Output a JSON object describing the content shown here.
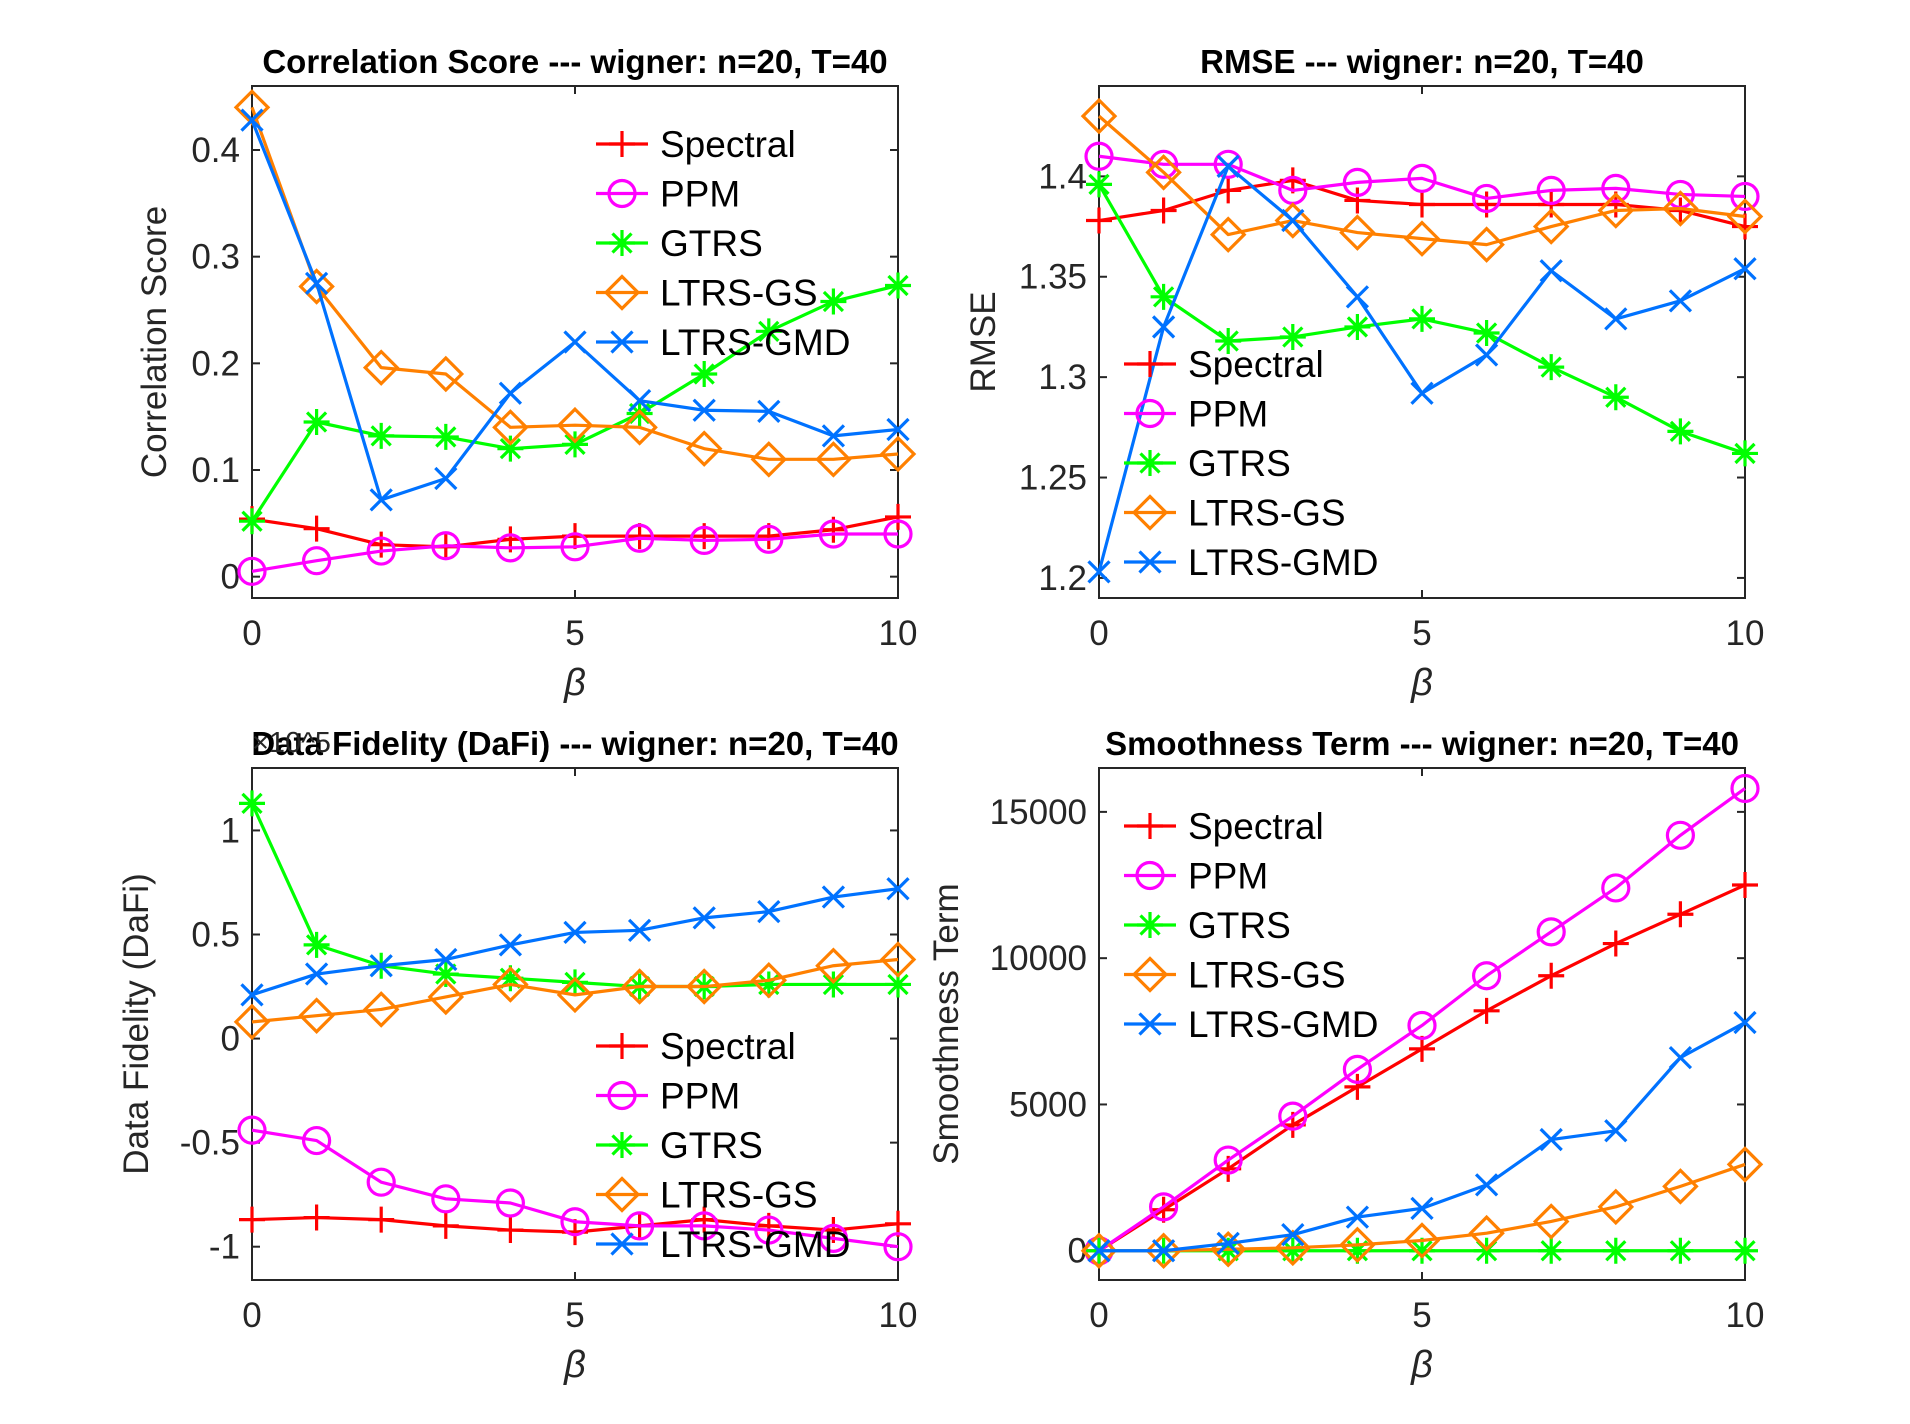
{
  "chart_data": [
    {
      "type": "line",
      "title": "Correlation Score --- wigner: n=20, T=40",
      "xlabel": "β",
      "ylabel": "Correlation Score",
      "xlim": [
        0,
        10
      ],
      "ylim": [
        -0.02,
        0.46
      ],
      "xticks": [
        0,
        5,
        10
      ],
      "yticks": [
        0,
        0.1,
        0.2,
        0.3,
        0.4
      ],
      "ytick_labels": [
        "0",
        "0.1",
        "0.2",
        "0.3",
        "0.4"
      ],
      "legend_position": "top-right",
      "x": [
        0,
        1,
        2,
        3,
        4,
        5,
        6,
        7,
        8,
        9,
        10
      ],
      "series": [
        {
          "name": "Spectral",
          "color": "#ff0000",
          "marker": "plus",
          "values": [
            0.054,
            0.045,
            0.03,
            0.028,
            0.035,
            0.038,
            0.038,
            0.038,
            0.038,
            0.044,
            0.056
          ]
        },
        {
          "name": "PPM",
          "color": "#ff00ff",
          "marker": "circle",
          "values": [
            0.005,
            0.015,
            0.024,
            0.029,
            0.027,
            0.028,
            0.036,
            0.034,
            0.035,
            0.04,
            0.04
          ]
        },
        {
          "name": "GTRS",
          "color": "#00ff00",
          "marker": "star",
          "values": [
            0.052,
            0.145,
            0.132,
            0.131,
            0.12,
            0.124,
            0.153,
            0.19,
            0.23,
            0.258,
            0.273
          ]
        },
        {
          "name": "LTRS-GS",
          "color": "#ff8000",
          "marker": "diamond",
          "values": [
            0.44,
            0.272,
            0.196,
            0.19,
            0.14,
            0.142,
            0.14,
            0.12,
            0.11,
            0.11,
            0.115
          ]
        },
        {
          "name": "LTRS-GMD",
          "color": "#0072ff",
          "marker": "x",
          "values": [
            0.428,
            0.275,
            0.072,
            0.092,
            0.172,
            0.22,
            0.165,
            0.156,
            0.155,
            0.132,
            0.138
          ]
        }
      ]
    },
    {
      "type": "line",
      "title": "RMSE --- wigner: n=20, T=40",
      "xlabel": "β",
      "ylabel": "RMSE",
      "xlim": [
        0,
        10
      ],
      "ylim": [
        1.19,
        1.445
      ],
      "xticks": [
        0,
        5,
        10
      ],
      "yticks": [
        1.2,
        1.25,
        1.3,
        1.35,
        1.4
      ],
      "ytick_labels": [
        "1.2",
        "1.25",
        "1.3",
        "1.35",
        "1.4"
      ],
      "legend_position": "bottom-left",
      "x": [
        0,
        1,
        2,
        3,
        4,
        5,
        6,
        7,
        8,
        9,
        10
      ],
      "series": [
        {
          "name": "Spectral",
          "color": "#ff0000",
          "marker": "plus",
          "values": [
            1.378,
            1.383,
            1.393,
            1.398,
            1.388,
            1.386,
            1.386,
            1.386,
            1.386,
            1.383,
            1.375
          ]
        },
        {
          "name": "PPM",
          "color": "#ff00ff",
          "marker": "circle",
          "values": [
            1.41,
            1.406,
            1.406,
            1.393,
            1.397,
            1.399,
            1.389,
            1.393,
            1.394,
            1.391,
            1.39
          ]
        },
        {
          "name": "GTRS",
          "color": "#00ff00",
          "marker": "star",
          "values": [
            1.396,
            1.34,
            1.318,
            1.32,
            1.325,
            1.329,
            1.322,
            1.305,
            1.29,
            1.273,
            1.262
          ]
        },
        {
          "name": "LTRS-GS",
          "color": "#ff8000",
          "marker": "diamond",
          "values": [
            1.43,
            1.402,
            1.371,
            1.378,
            1.372,
            1.369,
            1.366,
            1.375,
            1.383,
            1.384,
            1.38
          ]
        },
        {
          "name": "LTRS-GMD",
          "color": "#0072ff",
          "marker": "x",
          "values": [
            1.203,
            1.325,
            1.405,
            1.378,
            1.34,
            1.292,
            1.311,
            1.353,
            1.329,
            1.338,
            1.354
          ]
        }
      ]
    },
    {
      "type": "line",
      "title": "Data Fidelity (DaFi) --- wigner: n=20, T=40",
      "xlabel": "β",
      "ylabel": "Data Fidelity (DaFi)",
      "y_exponent_label": "×10^5",
      "xlim": [
        0,
        10
      ],
      "ylim": [
        -1.16,
        1.3
      ],
      "xticks": [
        0,
        5,
        10
      ],
      "yticks": [
        -1,
        -0.5,
        0,
        0.5,
        1
      ],
      "ytick_labels": [
        "-1",
        "-0.5",
        "0",
        "0.5",
        "1"
      ],
      "legend_position": "bottom-right",
      "x": [
        0,
        1,
        2,
        3,
        4,
        5,
        6,
        7,
        8,
        9,
        10
      ],
      "series": [
        {
          "name": "Spectral",
          "color": "#ff0000",
          "marker": "plus",
          "values": [
            -0.87,
            -0.86,
            -0.87,
            -0.9,
            -0.92,
            -0.93,
            -0.9,
            -0.87,
            -0.9,
            -0.92,
            -0.89
          ]
        },
        {
          "name": "PPM",
          "color": "#ff00ff",
          "marker": "circle",
          "values": [
            -0.44,
            -0.49,
            -0.69,
            -0.77,
            -0.79,
            -0.88,
            -0.9,
            -0.9,
            -0.92,
            -0.96,
            -1.0
          ]
        },
        {
          "name": "GTRS",
          "color": "#00ff00",
          "marker": "star",
          "values": [
            1.13,
            0.45,
            0.35,
            0.31,
            0.29,
            0.27,
            0.25,
            0.25,
            0.26,
            0.26,
            0.26
          ]
        },
        {
          "name": "LTRS-GS",
          "color": "#ff8000",
          "marker": "diamond",
          "values": [
            0.08,
            0.11,
            0.14,
            0.2,
            0.26,
            0.21,
            0.25,
            0.25,
            0.28,
            0.35,
            0.38
          ]
        },
        {
          "name": "LTRS-GMD",
          "color": "#0072ff",
          "marker": "x",
          "values": [
            0.21,
            0.31,
            0.35,
            0.38,
            0.45,
            0.51,
            0.52,
            0.58,
            0.61,
            0.68,
            0.72
          ]
        }
      ]
    },
    {
      "type": "line",
      "title": "Smoothness Term  --- wigner: n=20, T=40",
      "xlabel": "β",
      "ylabel": "Smoothness Term",
      "xlim": [
        0,
        10
      ],
      "ylim": [
        -1000,
        16500
      ],
      "xticks": [
        0,
        5,
        10
      ],
      "yticks": [
        0,
        5000,
        10000,
        15000
      ],
      "ytick_labels": [
        "0",
        "5000",
        "10000",
        "15000"
      ],
      "legend_position": "top-left",
      "x": [
        0,
        1,
        2,
        3,
        4,
        5,
        6,
        7,
        8,
        9,
        10
      ],
      "series": [
        {
          "name": "Spectral",
          "color": "#ff0000",
          "marker": "plus",
          "values": [
            0,
            1400,
            2800,
            4300,
            5600,
            6900,
            8200,
            9400,
            10500,
            11500,
            12500
          ]
        },
        {
          "name": "PPM",
          "color": "#ff00ff",
          "marker": "circle",
          "values": [
            0,
            1500,
            3100,
            4600,
            6200,
            7700,
            9400,
            10900,
            12400,
            14200,
            15800
          ]
        },
        {
          "name": "GTRS",
          "color": "#00ff00",
          "marker": "star",
          "values": [
            0,
            0,
            0,
            0,
            0,
            0,
            0,
            0,
            0,
            0,
            0
          ]
        },
        {
          "name": "LTRS-GS",
          "color": "#ff8000",
          "marker": "diamond",
          "values": [
            0,
            0,
            50,
            100,
            200,
            350,
            600,
            1000,
            1500,
            2200,
            2950
          ]
        },
        {
          "name": "LTRS-GMD",
          "color": "#0072ff",
          "marker": "x",
          "values": [
            0,
            0,
            250,
            550,
            1150,
            1450,
            2250,
            3800,
            4100,
            6600,
            7800
          ]
        }
      ]
    }
  ]
}
